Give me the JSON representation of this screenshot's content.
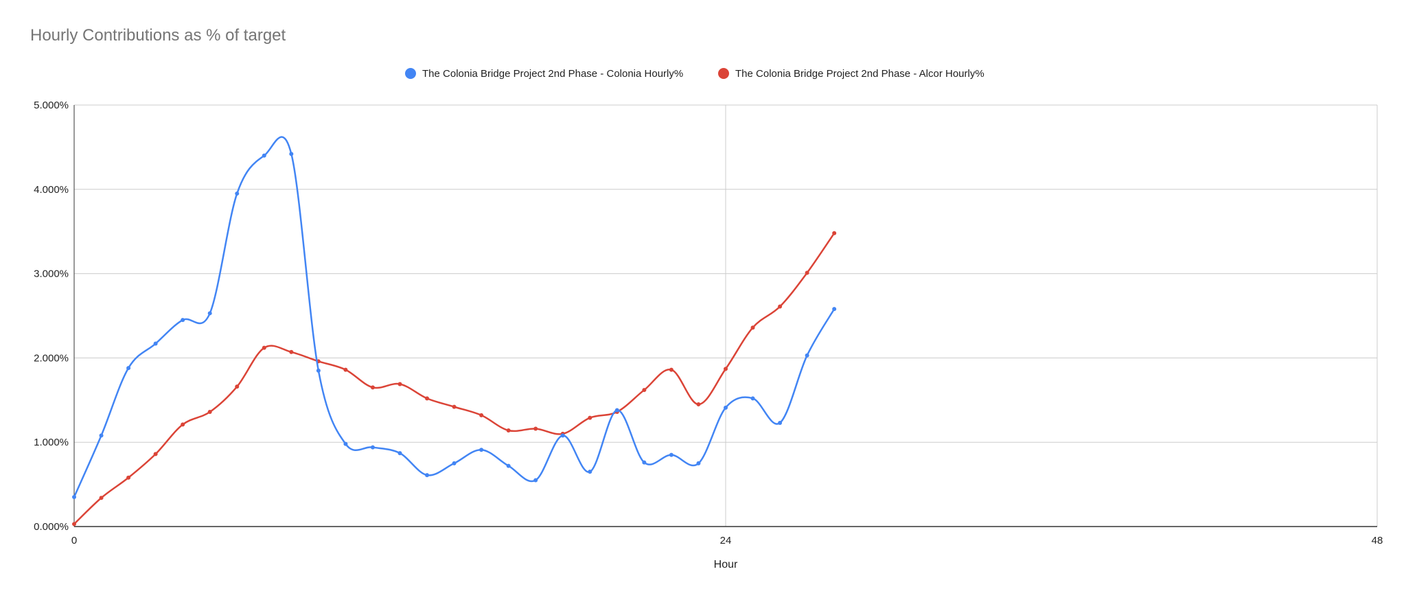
{
  "chart_data": {
    "type": "line",
    "title": "Hourly Contributions as % of target",
    "xlabel": "Hour",
    "ylabel": "",
    "xlim": [
      0,
      48
    ],
    "ylim": [
      0,
      5
    ],
    "x_ticks": [
      0,
      24,
      48
    ],
    "x_tick_labels": [
      "0",
      "24",
      "48"
    ],
    "y_ticks": [
      0,
      1,
      2,
      3,
      4,
      5
    ],
    "y_tick_labels": [
      "0.000%",
      "1.000%",
      "2.000%",
      "3.000%",
      "4.000%",
      "5.000%"
    ],
    "grid": true,
    "legend_position": "top-center",
    "x": [
      0,
      1,
      2,
      3,
      4,
      5,
      6,
      7,
      8,
      9,
      10,
      11,
      12,
      13,
      14,
      15,
      16,
      17,
      18,
      19,
      20,
      21,
      22,
      23,
      24,
      25,
      26,
      27,
      28
    ],
    "series": [
      {
        "name": "The Colonia Bridge Project 2nd Phase - Colonia Hourly%",
        "color": "#4285f4",
        "values": [
          0.35,
          1.08,
          1.88,
          2.17,
          2.45,
          2.53,
          3.95,
          4.4,
          4.42,
          1.85,
          0.98,
          0.94,
          0.87,
          0.61,
          0.75,
          0.91,
          0.72,
          0.55,
          1.08,
          0.65,
          1.38,
          0.76,
          0.85,
          0.75,
          1.41,
          1.52,
          1.23,
          2.03,
          2.58
        ]
      },
      {
        "name": "The Colonia Bridge Project 2nd Phase - Alcor Hourly%",
        "color": "#db4437",
        "values": [
          0.03,
          0.34,
          0.58,
          0.86,
          1.21,
          1.36,
          1.66,
          2.12,
          2.07,
          1.96,
          1.86,
          1.65,
          1.69,
          1.52,
          1.42,
          1.32,
          1.14,
          1.16,
          1.1,
          1.29,
          1.36,
          1.62,
          1.86,
          1.45,
          1.87,
          2.36,
          2.61,
          3.01,
          3.48
        ]
      }
    ]
  }
}
